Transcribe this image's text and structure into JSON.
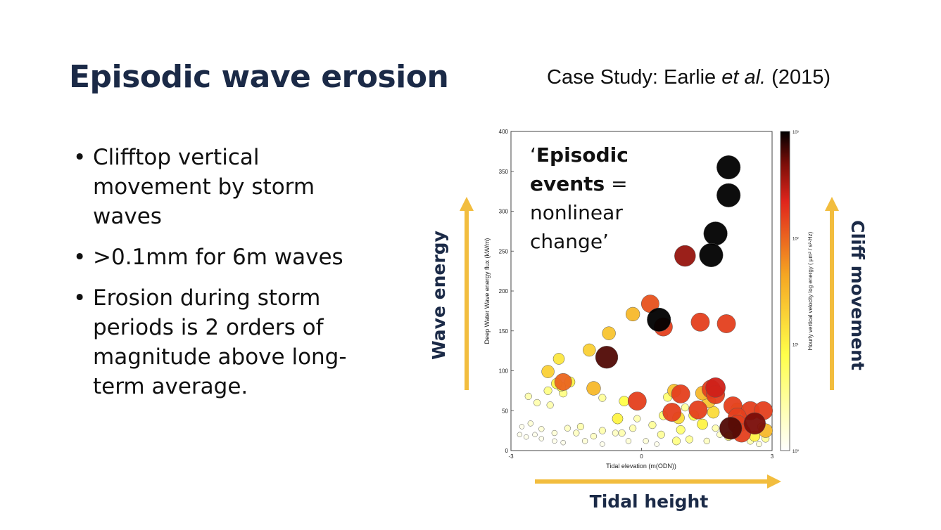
{
  "slide": {
    "title": "Episodic wave erosion",
    "case_study_prefix": "Case Study: Earlie ",
    "case_study_italic": "et al.",
    "case_study_suffix": " (2015)",
    "bullets": [
      "Clifftop vertical movement by storm waves",
      ">0.1mm  for 6m waves",
      "Erosion during storm periods is 2 orders of magnitude above long-term average."
    ],
    "annotation": {
      "open_quote": "‘",
      "bold_1": "Episodic",
      "bold_2": "events",
      "rest_1": " =",
      "rest_2": "nonlinear",
      "rest_3": "change’"
    },
    "arrows": {
      "left_label": "Wave energy",
      "right_label": "Cliff movement",
      "bottom_label": "Tidal height",
      "color": "#f2bd3e",
      "label_color": "#1b2a47"
    }
  },
  "chart_data": {
    "type": "scatter",
    "xlabel": "Tidal elevation (m(ODN))",
    "ylabel": "Deep Water Wave energy flux (kW/m)",
    "colorbar_label": "Hourly vertical velocity log energy ( μm² / s²·Hz)",
    "xlim": [
      -3,
      3
    ],
    "ylim": [
      0,
      400
    ],
    "xticks": [
      "-3",
      "0",
      "3"
    ],
    "yticks": [
      "0",
      "50",
      "100",
      "150",
      "200",
      "250",
      "300",
      "350",
      "400"
    ],
    "colorbar_ticks": [
      "10⁰",
      "10¹",
      "10²",
      "10³"
    ],
    "colorbar_range": [
      0,
      3
    ],
    "points": [
      {
        "x": 2.0,
        "y": 355,
        "c": 3.0
      },
      {
        "x": 2.0,
        "y": 320,
        "c": 3.0
      },
      {
        "x": 1.7,
        "y": 272,
        "c": 3.0
      },
      {
        "x": 1.6,
        "y": 245,
        "c": 3.0
      },
      {
        "x": 1.0,
        "y": 244,
        "c": 2.6
      },
      {
        "x": 0.4,
        "y": 164,
        "c": 3.0
      },
      {
        "x": 0.5,
        "y": 155,
        "c": 2.2
      },
      {
        "x": 0.2,
        "y": 184,
        "c": 2.1
      },
      {
        "x": -0.2,
        "y": 171,
        "c": 1.5
      },
      {
        "x": -0.75,
        "y": 147,
        "c": 1.4
      },
      {
        "x": -1.2,
        "y": 126,
        "c": 1.3
      },
      {
        "x": -0.8,
        "y": 117,
        "c": 2.8
      },
      {
        "x": 1.35,
        "y": 161,
        "c": 2.2
      },
      {
        "x": 1.95,
        "y": 159,
        "c": 2.2
      },
      {
        "x": -1.9,
        "y": 115,
        "c": 1.1
      },
      {
        "x": -2.15,
        "y": 99,
        "c": 1.3
      },
      {
        "x": -1.8,
        "y": 86,
        "c": 2.0
      },
      {
        "x": -1.95,
        "y": 84,
        "c": 1.0
      },
      {
        "x": -1.65,
        "y": 86,
        "c": 1.0
      },
      {
        "x": -1.85,
        "y": 80,
        "c": 0.8
      },
      {
        "x": -1.1,
        "y": 78,
        "c": 1.5
      },
      {
        "x": -2.15,
        "y": 75,
        "c": 0.6
      },
      {
        "x": -1.8,
        "y": 72,
        "c": 0.6
      },
      {
        "x": -2.6,
        "y": 68,
        "c": 0.4
      },
      {
        "x": -2.4,
        "y": 60,
        "c": 0.4
      },
      {
        "x": -2.1,
        "y": 57,
        "c": 0.4
      },
      {
        "x": -0.9,
        "y": 66,
        "c": 0.5
      },
      {
        "x": -0.4,
        "y": 62,
        "c": 0.9
      },
      {
        "x": -0.1,
        "y": 62,
        "c": 2.2
      },
      {
        "x": 0.75,
        "y": 75,
        "c": 1.4
      },
      {
        "x": 0.9,
        "y": 71,
        "c": 2.2
      },
      {
        "x": 0.6,
        "y": 67,
        "c": 0.7
      },
      {
        "x": 0.7,
        "y": 48,
        "c": 2.2
      },
      {
        "x": 1.4,
        "y": 72,
        "c": 1.5
      },
      {
        "x": 1.6,
        "y": 77,
        "c": 2.2
      },
      {
        "x": 1.7,
        "y": 79,
        "c": 2.4
      },
      {
        "x": 1.7,
        "y": 70,
        "c": 2.2
      },
      {
        "x": 1.55,
        "y": 62,
        "c": 1.4
      },
      {
        "x": 1.3,
        "y": 51,
        "c": 2.2
      },
      {
        "x": 1.2,
        "y": 44,
        "c": 0.9
      },
      {
        "x": 1.65,
        "y": 48,
        "c": 1.2
      },
      {
        "x": 1.4,
        "y": 33,
        "c": 1.0
      },
      {
        "x": 2.1,
        "y": 56,
        "c": 2.2
      },
      {
        "x": 2.2,
        "y": 52,
        "c": 1.3
      },
      {
        "x": 2.5,
        "y": 50,
        "c": 2.2
      },
      {
        "x": 2.8,
        "y": 50,
        "c": 2.2
      },
      {
        "x": 2.2,
        "y": 42,
        "c": 2.2
      },
      {
        "x": 2.2,
        "y": 33,
        "c": 2.2
      },
      {
        "x": 2.6,
        "y": 34,
        "c": 2.7
      },
      {
        "x": 2.05,
        "y": 28,
        "c": 2.8
      },
      {
        "x": 2.3,
        "y": 22,
        "c": 2.2
      },
      {
        "x": 2.85,
        "y": 25,
        "c": 1.5
      },
      {
        "x": 2.6,
        "y": 18,
        "c": 1.0
      },
      {
        "x": 2.0,
        "y": 18,
        "c": 0.7
      },
      {
        "x": 2.85,
        "y": 15,
        "c": 0.5
      },
      {
        "x": 2.5,
        "y": 12,
        "c": 0.4
      },
      {
        "x": 1.0,
        "y": 54,
        "c": 0.5
      },
      {
        "x": 0.85,
        "y": 41,
        "c": 1.2
      },
      {
        "x": 0.9,
        "y": 26,
        "c": 0.7
      },
      {
        "x": 0.5,
        "y": 44,
        "c": 0.7
      },
      {
        "x": 0.25,
        "y": 32,
        "c": 0.5
      },
      {
        "x": 0.45,
        "y": 20,
        "c": 0.5
      },
      {
        "x": 0.8,
        "y": 12,
        "c": 0.6
      },
      {
        "x": 1.1,
        "y": 14,
        "c": 0.5
      },
      {
        "x": -0.1,
        "y": 40,
        "c": 0.4
      },
      {
        "x": -0.2,
        "y": 28,
        "c": 0.4
      },
      {
        "x": -0.45,
        "y": 22,
        "c": 0.4
      },
      {
        "x": -0.55,
        "y": 40,
        "c": 1.0
      },
      {
        "x": -0.6,
        "y": 22,
        "c": 0.3
      },
      {
        "x": -0.9,
        "y": 25,
        "c": 0.4
      },
      {
        "x": -1.1,
        "y": 18,
        "c": 0.3
      },
      {
        "x": -1.4,
        "y": 30,
        "c": 0.4
      },
      {
        "x": -1.5,
        "y": 22,
        "c": 0.3
      },
      {
        "x": -1.7,
        "y": 28,
        "c": 0.3
      },
      {
        "x": -2.0,
        "y": 22,
        "c": 0.2
      },
      {
        "x": -2.3,
        "y": 27,
        "c": 0.2
      },
      {
        "x": -2.55,
        "y": 34,
        "c": 0.2
      },
      {
        "x": -2.75,
        "y": 30,
        "c": 0.1
      },
      {
        "x": -2.8,
        "y": 20,
        "c": 0.1
      },
      {
        "x": -2.65,
        "y": 17,
        "c": 0.1
      },
      {
        "x": -2.45,
        "y": 20,
        "c": 0.1
      },
      {
        "x": -2.3,
        "y": 15,
        "c": 0.1
      },
      {
        "x": -2.0,
        "y": 12,
        "c": 0.1
      },
      {
        "x": -1.8,
        "y": 10,
        "c": 0.1
      },
      {
        "x": -1.3,
        "y": 12,
        "c": 0.2
      },
      {
        "x": -0.9,
        "y": 8,
        "c": 0.1
      },
      {
        "x": -0.3,
        "y": 12,
        "c": 0.2
      },
      {
        "x": 0.1,
        "y": 12,
        "c": 0.2
      },
      {
        "x": 0.35,
        "y": 8,
        "c": 0.1
      },
      {
        "x": 1.5,
        "y": 12,
        "c": 0.3
      },
      {
        "x": 1.8,
        "y": 20,
        "c": 0.3
      },
      {
        "x": 2.7,
        "y": 8,
        "c": 0.2
      },
      {
        "x": 1.7,
        "y": 28,
        "c": 0.4
      },
      {
        "x": 2.35,
        "y": 30,
        "c": 0.6
      },
      {
        "x": 2.75,
        "y": 30,
        "c": 0.5
      }
    ]
  }
}
